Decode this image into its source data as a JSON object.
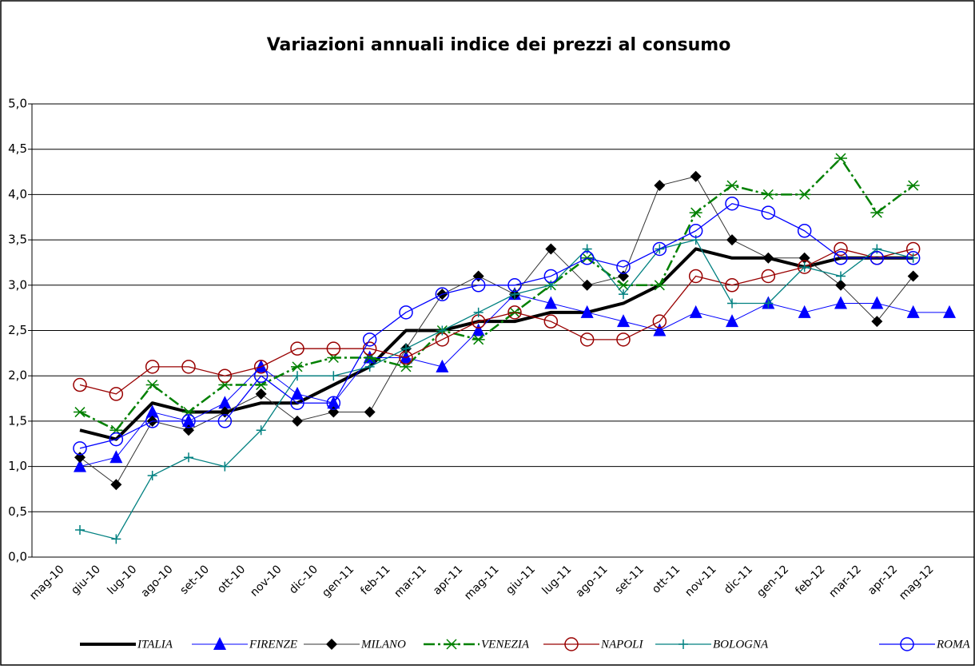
{
  "chart_data": {
    "type": "line",
    "title": "Variazioni annuali indice dei prezzi al consumo",
    "categories": [
      "mag-10",
      "giu-10",
      "lug-10",
      "ago-10",
      "set-10",
      "ott-10",
      "nov-10",
      "dic-10",
      "gen-11",
      "feb-11",
      "mar-11",
      "apr-11",
      "mag-11",
      "giu-11",
      "lug-11",
      "ago-11",
      "set-11",
      "ott-11",
      "nov-11",
      "dic-11",
      "gen-12",
      "feb-12",
      "mar-12",
      "apr-12",
      "mag-12"
    ],
    "ylim": [
      0,
      5
    ],
    "yticks": [
      {
        "value": 0,
        "label": "0,0"
      },
      {
        "value": 0.5,
        "label": "0,5"
      },
      {
        "value": 1,
        "label": "1,0"
      },
      {
        "value": 1.5,
        "label": "1,5"
      },
      {
        "value": 2,
        "label": "2,0"
      },
      {
        "value": 2.5,
        "label": "2,5"
      },
      {
        "value": 3,
        "label": "3,0"
      },
      {
        "value": 3.5,
        "label": "3,5"
      },
      {
        "value": 4,
        "label": "4,0"
      },
      {
        "value": 4.5,
        "label": "4,5"
      },
      {
        "value": 5,
        "label": "5,0"
      }
    ],
    "grid": true,
    "legend": "bottom",
    "series": [
      {
        "name": "ITALIA",
        "color": "#000000",
        "width": 4,
        "marker": "none",
        "values": [
          1.4,
          1.3,
          1.7,
          1.6,
          1.6,
          1.7,
          1.7,
          1.9,
          2.1,
          2.5,
          2.5,
          2.6,
          2.6,
          2.7,
          2.7,
          2.8,
          3.0,
          3.4,
          3.3,
          3.3,
          3.2,
          3.3,
          3.3,
          3.3,
          null
        ]
      },
      {
        "name": "FIRENZE",
        "color": "#0000ff",
        "width": 1,
        "marker": "triangle",
        "values": [
          1.0,
          1.1,
          1.6,
          1.5,
          1.7,
          2.1,
          1.8,
          1.7,
          2.2,
          2.2,
          2.1,
          2.5,
          2.9,
          2.8,
          2.7,
          2.6,
          2.5,
          2.7,
          2.6,
          2.8,
          2.7,
          2.8,
          2.8,
          2.7,
          2.7
        ]
      },
      {
        "name": "MILANO",
        "color": "#333333",
        "width": 1,
        "marker": "diamond",
        "values": [
          1.1,
          0.8,
          1.5,
          1.4,
          1.6,
          1.8,
          1.5,
          1.6,
          1.6,
          2.3,
          2.9,
          3.1,
          2.9,
          3.4,
          3.0,
          3.1,
          4.1,
          4.2,
          3.5,
          3.3,
          3.3,
          3.0,
          2.6,
          3.1,
          null
        ]
      },
      {
        "name": "VENEZIA",
        "color": "#008000",
        "width": 2.5,
        "dash": true,
        "marker": "star",
        "values": [
          1.6,
          1.4,
          1.9,
          1.6,
          1.9,
          1.9,
          2.1,
          2.2,
          2.2,
          2.1,
          2.5,
          2.4,
          2.7,
          3.0,
          3.3,
          3.0,
          3.0,
          3.8,
          4.1,
          4.0,
          4.0,
          4.4,
          3.8,
          4.1,
          null
        ]
      },
      {
        "name": "NAPOLI",
        "color": "#990000",
        "width": 1.3,
        "marker": "circle",
        "values": [
          1.9,
          1.8,
          2.1,
          2.1,
          2.0,
          2.1,
          2.3,
          2.3,
          2.3,
          2.2,
          2.4,
          2.6,
          2.7,
          2.6,
          2.4,
          2.4,
          2.6,
          3.1,
          3.0,
          3.1,
          3.2,
          3.4,
          3.3,
          3.4,
          null
        ]
      },
      {
        "name": "BOLOGNA",
        "color": "#008080",
        "width": 1.3,
        "marker": "plus",
        "values": [
          0.3,
          0.2,
          0.9,
          1.1,
          1.0,
          1.4,
          2.0,
          2.0,
          2.1,
          2.3,
          2.5,
          2.7,
          2.9,
          3.0,
          3.4,
          2.9,
          3.4,
          3.5,
          2.8,
          2.8,
          3.2,
          3.1,
          3.4,
          3.3,
          null
        ]
      },
      {
        "name": "ROMA",
        "color": "#0000ff",
        "width": 1.3,
        "marker": "circle",
        "values": [
          1.2,
          1.3,
          1.5,
          1.5,
          1.5,
          2.0,
          1.7,
          1.7,
          2.4,
          2.7,
          2.9,
          3.0,
          3.0,
          3.1,
          3.3,
          3.2,
          3.4,
          3.6,
          3.9,
          3.8,
          3.6,
          3.3,
          3.3,
          3.3,
          null
        ]
      }
    ]
  }
}
